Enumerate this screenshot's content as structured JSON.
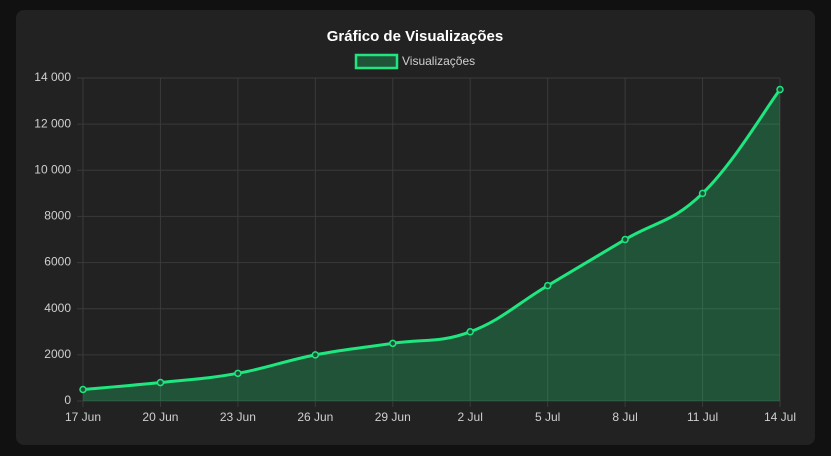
{
  "chart_data": {
    "type": "line",
    "title": "Gráfico de Visualizações",
    "categories": [
      "17 Jun",
      "20 Jun",
      "23 Jun",
      "26 Jun",
      "29 Jun",
      "2 Jul",
      "5 Jul",
      "8 Jul",
      "11 Jul",
      "14 Jul"
    ],
    "series": [
      {
        "name": "Visualizações",
        "color": "#1fe67f",
        "values": [
          500,
          800,
          1200,
          2000,
          2500,
          3000,
          5000,
          7000,
          9000,
          13500
        ]
      }
    ],
    "ylim": [
      0,
      14000
    ],
    "yticks": [
      0,
      2000,
      4000,
      6000,
      8000,
      {
        "value": 10000,
        "label": "10 000"
      },
      {
        "value": 12000,
        "label": "12 000"
      },
      {
        "value": 14000,
        "label": "14 000"
      }
    ],
    "grid": true,
    "fill": true,
    "legend": "top"
  }
}
